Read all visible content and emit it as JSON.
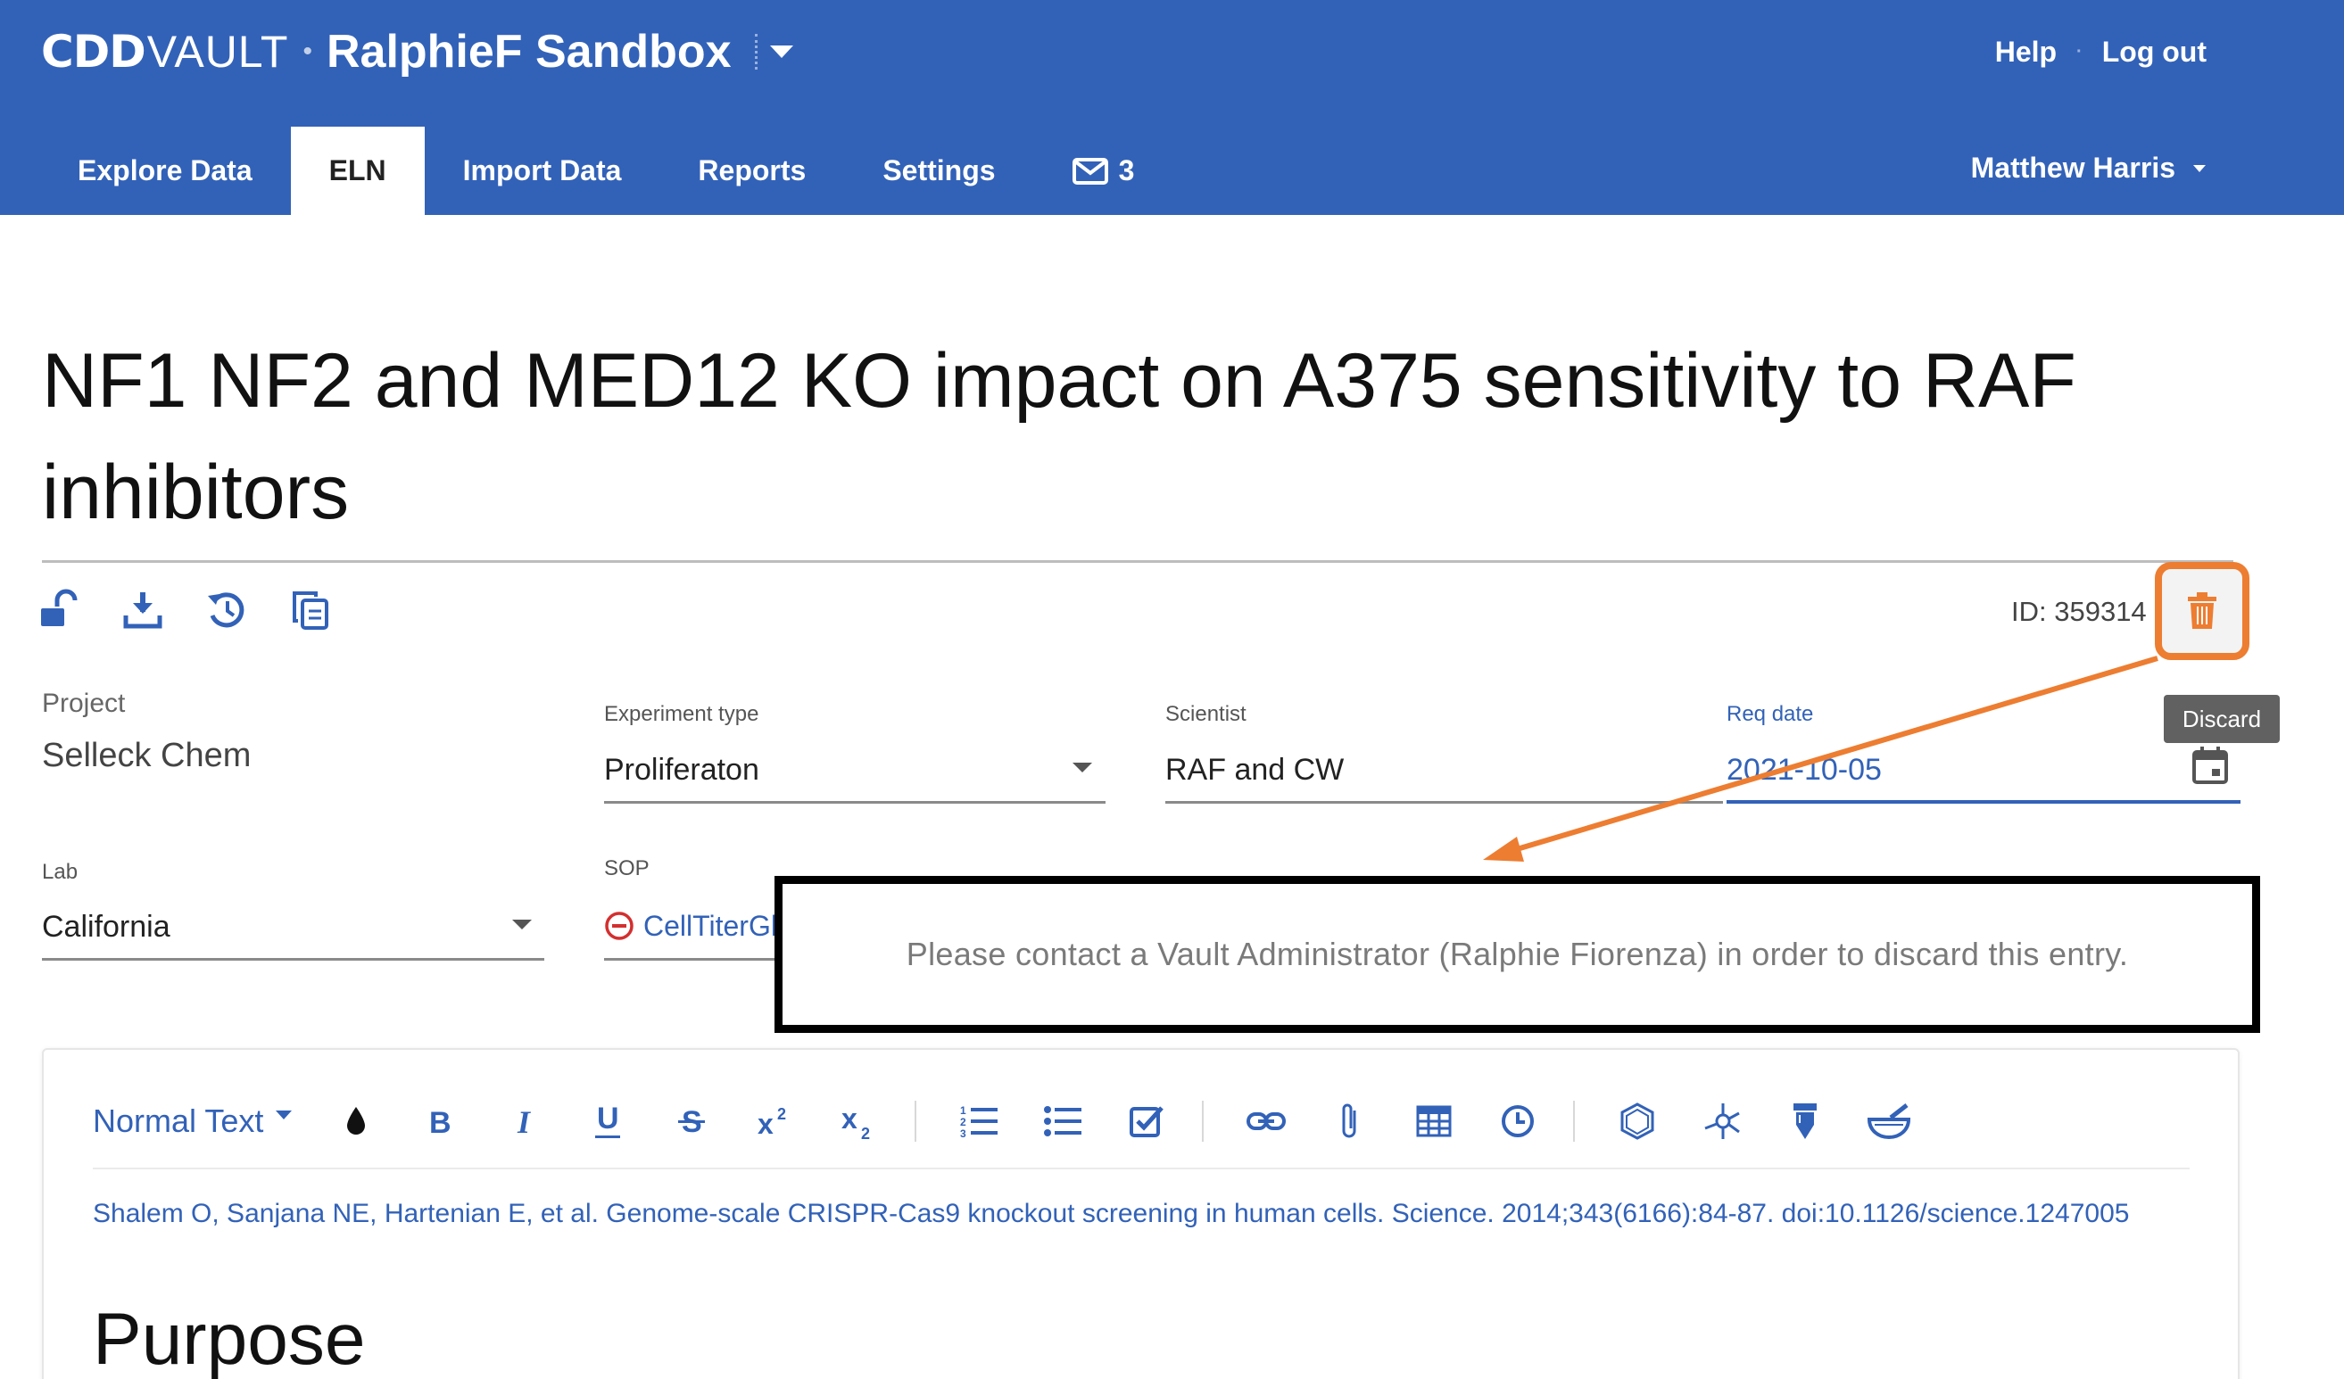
{
  "header": {
    "logo_main": "CDD",
    "logo_vault": "VAULT",
    "logo_dot": "•",
    "vault_name": "RalphieF Sandbox",
    "help": "Help",
    "logout": "Log out",
    "link_separator": "·",
    "tabs": [
      {
        "label": "Explore Data",
        "active": false
      },
      {
        "label": "ELN",
        "active": true
      },
      {
        "label": "Import Data",
        "active": false
      },
      {
        "label": "Reports",
        "active": false
      },
      {
        "label": "Settings",
        "active": false
      }
    ],
    "messages_count": "3",
    "user_name": "Matthew Harris"
  },
  "entry": {
    "title": "NF1 NF2 and MED12 KO impact on A375 sensitivity to RAF inhibitors",
    "id_text": "ID: 359314",
    "discard_tooltip": "Discard",
    "action_icons": [
      "unlock-icon",
      "download-icon",
      "history-icon",
      "copy-icon"
    ]
  },
  "fields": {
    "project": {
      "label": "Project",
      "value": "Selleck Chem"
    },
    "experiment_type": {
      "label": "Experiment type",
      "value": "Proliferaton"
    },
    "scientist": {
      "label": "Scientist",
      "value": "RAF and CW"
    },
    "req_date": {
      "label": "Req date",
      "value": "2021-10-05"
    },
    "lab": {
      "label": "Lab",
      "value": "California"
    },
    "sop": {
      "label": "SOP",
      "value": "CellTiterGl"
    }
  },
  "editor": {
    "text_style": "Normal Text",
    "toolbar_buttons": [
      "color-icon",
      "bold-icon",
      "italic-icon",
      "underline-icon",
      "strikethrough-icon",
      "superscript-icon",
      "subscript-icon",
      "ordered-list-icon",
      "bullet-list-icon",
      "checklist-icon",
      "link-icon",
      "attachment-icon",
      "table-icon",
      "timestamp-icon",
      "molecule-icon",
      "chem-reaction-icon",
      "sample-tube-icon",
      "mortar-icon"
    ],
    "citation": "Shalem O, Sanjana NE, Hartenian E, et al. Genome-scale CRISPR-Cas9 knockout screening in human cells. Science. 2014;343(6166):84-87. doi:10.1126/science.1247005",
    "heading": "Purpose"
  },
  "annotation": {
    "notice": "Please contact a Vault Administrator (Ralphie Fiorenza) in order to discard this entry.",
    "highlight_color": "#ed7d31"
  },
  "colors": {
    "brand_blue": "#3262b8",
    "accent_orange": "#ed7d31",
    "danger_red": "#d32f2f"
  }
}
